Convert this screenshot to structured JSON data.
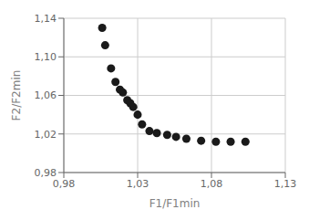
{
  "chart_data": {
    "type": "scatter",
    "x": [
      1.006,
      1.008,
      1.012,
      1.015,
      1.018,
      1.02,
      1.023,
      1.025,
      1.027,
      1.03,
      1.033,
      1.038,
      1.043,
      1.05,
      1.056,
      1.063,
      1.073,
      1.083,
      1.093,
      1.103
    ],
    "values": [
      1.13,
      1.112,
      1.088,
      1.074,
      1.066,
      1.063,
      1.055,
      1.052,
      1.048,
      1.04,
      1.03,
      1.023,
      1.021,
      1.019,
      1.017,
      1.015,
      1.013,
      1.012,
      1.012,
      1.012
    ],
    "color": "#1a1a1a",
    "xlabel": "F1/F1min",
    "ylabel": "F2/F2min",
    "xlim": [
      0.98,
      1.13
    ],
    "ylim": [
      0.98,
      1.14
    ],
    "xticks": [
      {
        "value": 0.98,
        "label": "0,98"
      },
      {
        "value": 1.03,
        "label": "1,03"
      },
      {
        "value": 1.08,
        "label": "1,08"
      },
      {
        "value": 1.13,
        "label": "1,13"
      }
    ],
    "yticks": [
      {
        "value": 0.98,
        "label": "0,98"
      },
      {
        "value": 1.02,
        "label": "1,02"
      },
      {
        "value": 1.06,
        "label": "1,06"
      },
      {
        "value": 1.1,
        "label": "1,10"
      },
      {
        "value": 1.14,
        "label": "1,14"
      }
    ],
    "grid": true
  }
}
